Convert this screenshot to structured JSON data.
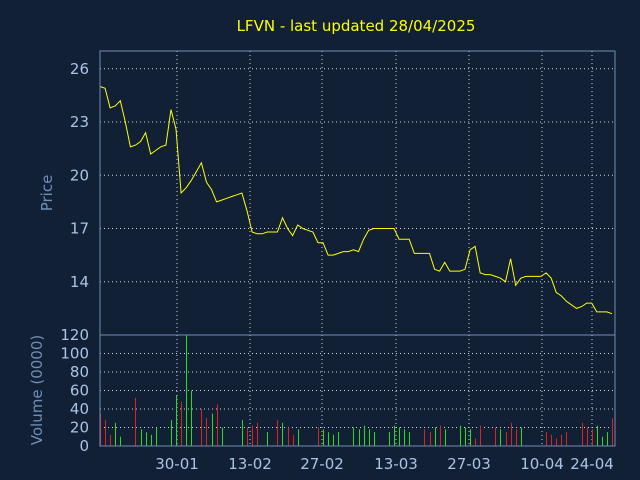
{
  "chart_data": [
    {
      "type": "line",
      "title": "LFVN - last updated 28/04/2025",
      "ylabel": "Price",
      "ylim": [
        11,
        27
      ],
      "yticks": [
        "26",
        "23",
        "20",
        "17",
        "14"
      ],
      "grid": true,
      "color": "#ffff00",
      "series": [
        {
          "values": [
            25.0,
            24.9,
            23.8,
            23.9,
            24.2,
            23.0,
            21.6,
            21.7,
            21.9,
            22.4,
            21.2,
            21.4,
            21.6,
            21.7,
            23.7,
            22.6,
            19.0,
            19.3,
            19.7,
            20.2,
            20.7,
            19.6,
            19.2,
            18.5,
            18.6,
            18.7,
            18.8,
            18.9,
            19.0,
            18.0,
            16.8,
            16.7,
            16.7,
            16.8,
            16.8,
            16.8,
            17.6,
            17.0,
            16.6,
            17.2,
            17.0,
            16.9,
            16.8,
            16.2,
            16.2,
            15.5,
            15.5,
            15.6,
            15.7,
            15.7,
            15.8,
            15.7,
            16.4,
            16.9,
            17.0,
            17.0,
            17.0,
            17.0,
            17.0,
            16.4,
            16.4,
            16.4,
            15.6,
            15.6,
            15.6,
            15.6,
            14.7,
            14.6,
            15.1,
            14.6,
            14.6,
            14.6,
            14.7,
            15.8,
            16.0,
            14.5,
            14.4,
            14.4,
            14.3,
            14.2,
            14.0,
            15.3,
            13.8,
            14.2,
            14.3,
            14.3,
            14.3,
            14.3,
            14.5,
            14.2,
            13.4,
            13.2,
            12.9,
            12.7,
            12.5,
            12.6,
            12.8,
            12.8,
            12.3,
            12.3,
            12.3,
            12.2
          ]
        }
      ]
    },
    {
      "type": "bar",
      "ylabel": "Volume (0000)",
      "ylim": [
        0,
        120
      ],
      "yticks": [
        "120",
        "100",
        "80",
        "60",
        "40",
        "20",
        "0"
      ],
      "grid": true,
      "up_color": "#22dd22",
      "down_color": "#dd2222",
      "values": [
        35,
        28,
        12,
        25,
        10,
        0,
        0,
        52,
        18,
        15,
        12,
        20,
        0,
        0,
        28,
        55,
        48,
        120,
        60,
        0,
        40,
        30,
        35,
        45,
        20,
        0,
        0,
        0,
        28,
        20,
        22,
        25,
        0,
        15,
        0,
        28,
        25,
        20,
        12,
        18,
        0,
        0,
        0,
        20,
        18,
        15,
        12,
        15,
        0,
        0,
        20,
        18,
        22,
        18,
        15,
        0,
        0,
        15,
        22,
        20,
        18,
        15,
        0,
        0,
        18,
        15,
        20,
        22,
        18,
        0,
        0,
        22,
        20,
        18,
        8,
        22,
        0,
        0,
        20,
        18,
        15,
        25,
        18,
        20,
        0,
        0,
        0,
        0,
        15,
        12,
        8,
        12,
        15,
        0,
        0,
        25,
        20,
        18,
        22,
        10,
        15,
        30
      ],
      "directions": [
        "down",
        "down",
        "down",
        "up",
        "up",
        "up",
        "up",
        "down",
        "up",
        "up",
        "up",
        "up",
        "up",
        "up",
        "up",
        "up",
        "down",
        "up",
        "up",
        "up",
        "down",
        "down",
        "up",
        "down",
        "up",
        "up",
        "up",
        "up",
        "up",
        "down",
        "down",
        "down",
        "up",
        "up",
        "up",
        "down",
        "up",
        "down",
        "down",
        "up",
        "up",
        "up",
        "up",
        "down",
        "up",
        "up",
        "up",
        "up",
        "up",
        "up",
        "up",
        "up",
        "up",
        "up",
        "up",
        "up",
        "up",
        "up",
        "up",
        "up",
        "up",
        "up",
        "up",
        "up",
        "down",
        "down",
        "up",
        "down",
        "up",
        "up",
        "up",
        "up",
        "up",
        "up",
        "down",
        "down",
        "up",
        "up",
        "down",
        "up",
        "down",
        "down",
        "down",
        "up",
        "up",
        "up",
        "up",
        "up",
        "down",
        "down",
        "down",
        "down",
        "down",
        "up",
        "up",
        "down",
        "down",
        "down",
        "up",
        "up",
        "up",
        "down"
      ]
    }
  ],
  "x_axis": {
    "labels": [
      "30-01",
      "13-02",
      "27-02",
      "13-03",
      "27-03",
      "10-04",
      "24-04"
    ]
  }
}
